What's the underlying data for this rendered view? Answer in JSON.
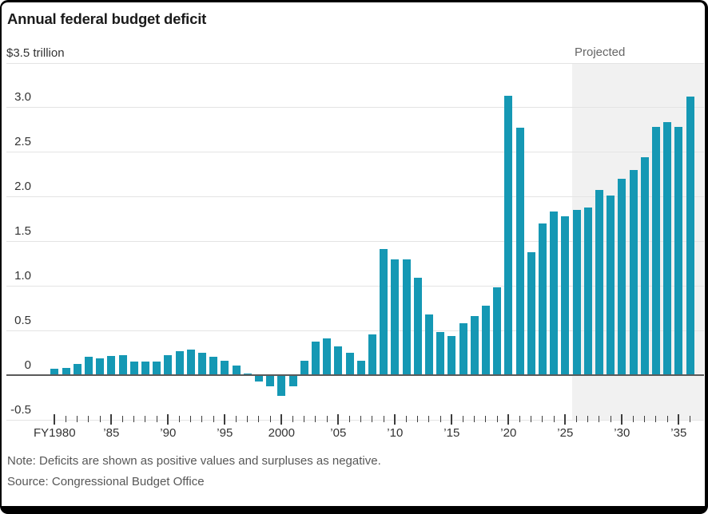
{
  "header": {
    "title": "Annual federal budget deficit"
  },
  "y_axis": {
    "top_label": "$3.5 trillion",
    "tick_labels": [
      {
        "value": 3.0,
        "label": "3.0"
      },
      {
        "value": 2.5,
        "label": "2.5"
      },
      {
        "value": 2.0,
        "label": "2.0"
      },
      {
        "value": 1.5,
        "label": "1.5"
      },
      {
        "value": 1.0,
        "label": "1.0"
      },
      {
        "value": 0.5,
        "label": "0.5"
      },
      {
        "value": 0,
        "label": "0"
      },
      {
        "value": -0.5,
        "label": "-0.5"
      }
    ]
  },
  "x_axis": {
    "major_ticks": [
      {
        "year": 1980,
        "label": "FY1980"
      },
      {
        "year": 1985,
        "label": "’85"
      },
      {
        "year": 1990,
        "label": "’90"
      },
      {
        "year": 1995,
        "label": "’95"
      },
      {
        "year": 2000,
        "label": "2000"
      },
      {
        "year": 2005,
        "label": "’05"
      },
      {
        "year": 2010,
        "label": "’10"
      },
      {
        "year": 2015,
        "label": "’15"
      },
      {
        "year": 2020,
        "label": "’20"
      },
      {
        "year": 2025,
        "label": "’25"
      },
      {
        "year": 2030,
        "label": "’30"
      },
      {
        "year": 2035,
        "label": "’35"
      }
    ]
  },
  "projected": {
    "label": "Projected",
    "from_year": 2026
  },
  "footer": {
    "note": "Note: Deficits are shown as positive values and surpluses as negative.",
    "source": "Source: Congressional Budget Office"
  },
  "colors": {
    "bar": "#1598b4",
    "projected_band": "#f1f1f1",
    "gridline": "#e4e4e4",
    "zero_line": "#5a5a5a",
    "title_text": "#1b1b1b",
    "axis_text": "#333333",
    "muted_text": "#666666"
  },
  "chart_data": {
    "type": "bar",
    "title": "Annual federal budget deficit",
    "unit": "trillions of dollars",
    "ylim": [
      -0.5,
      3.5
    ],
    "gridlines": [
      -0.5,
      0,
      0.5,
      1.0,
      1.5,
      2.0,
      2.5,
      3.0,
      3.5
    ],
    "start_year": 1980,
    "end_year": 2036,
    "projected_from_year": 2026,
    "values": [
      0.074,
      0.079,
      0.128,
      0.208,
      0.185,
      0.212,
      0.221,
      0.15,
      0.155,
      0.153,
      0.221,
      0.269,
      0.29,
      0.255,
      0.203,
      0.164,
      0.107,
      0.022,
      -0.069,
      -0.126,
      -0.236,
      -0.128,
      0.158,
      0.378,
      0.413,
      0.318,
      0.248,
      0.161,
      0.459,
      1.413,
      1.294,
      1.3,
      1.087,
      0.679,
      0.485,
      0.442,
      0.585,
      0.665,
      0.779,
      0.984,
      3.132,
      2.772,
      1.375,
      1.695,
      1.833,
      1.775,
      1.85,
      1.88,
      2.07,
      2.01,
      2.2,
      2.3,
      2.44,
      2.78,
      2.83,
      2.78,
      3.12
    ]
  }
}
